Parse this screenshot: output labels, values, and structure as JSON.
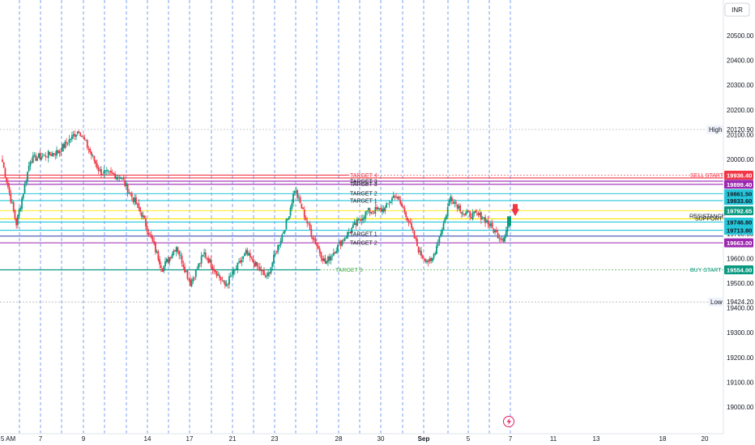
{
  "currency": "INR",
  "chart_data": {
    "type": "candlestick",
    "y_ticks": [
      19000,
      19100,
      19200,
      19300,
      19400,
      19500,
      19600,
      19700,
      19800,
      19900,
      20000,
      20100,
      20200,
      20300,
      20400,
      20500
    ],
    "y_tick_labels": [
      "19000.00",
      "19100.00",
      "19200.00",
      "19300.00",
      "19400.00",
      "19500.00",
      "19600.00",
      "19700.00",
      "19800.00",
      "19900.00",
      "20000.00",
      "20100.00",
      "20200.00",
      "20300.00",
      "20400.00",
      "20500.00"
    ],
    "ylim": [
      18930,
      20560
    ],
    "x_labels": [
      "5 AM",
      "7",
      "9",
      "14",
      "17",
      "21",
      "23",
      "28",
      "30",
      "Sep",
      "5",
      "7",
      "11",
      "13",
      "18",
      "20"
    ],
    "grid": "vertical dashed session separators",
    "high": {
      "label": "High",
      "value": 20120.9,
      "text": "20120.90"
    },
    "low": {
      "label": "Low",
      "value": 19424.2,
      "text": "19424.20"
    },
    "sell_start": {
      "label": "SELL START",
      "value": 19936.4,
      "text": "19936.40",
      "color": "#f23645"
    },
    "buy_start": {
      "label": "BUY START",
      "value": 19554.0,
      "text": "19554.00",
      "color": "#089981"
    },
    "level_labels": {
      "target_4": "TARGET 4",
      "target_3": "TARGET 3",
      "target_2": "TARGET 2",
      "target_1": "TARGET 1",
      "resistance": "RESISTANCE",
      "support": "SUPPORT"
    },
    "levels": [
      {
        "value": 19899.4,
        "text": "19899.40",
        "color": "#9c27b0"
      },
      {
        "value": 19861.5,
        "text": "19861.50",
        "color": "#26c6da"
      },
      {
        "value": 19833.6,
        "text": "19833.60",
        "color": "#26c6da"
      },
      {
        "value": 19792.65,
        "text": "19792.65",
        "color": "#089981"
      },
      {
        "value": 19746.8,
        "text": "19746.80",
        "color": "#26c6da"
      },
      {
        "value": 19713.8,
        "text": "19713.80",
        "color": "#26c6da"
      },
      {
        "value": 19663.0,
        "text": "19663.00",
        "color": "#9c27b0"
      }
    ],
    "waypoints": [
      {
        "i": 0,
        "p": 19990
      },
      {
        "i": 10,
        "p": 19740
      },
      {
        "i": 20,
        "p": 20000
      },
      {
        "i": 40,
        "p": 20030
      },
      {
        "i": 55,
        "p": 20120
      },
      {
        "i": 70,
        "p": 19950
      },
      {
        "i": 85,
        "p": 19930
      },
      {
        "i": 100,
        "p": 19780
      },
      {
        "i": 115,
        "p": 19560
      },
      {
        "i": 125,
        "p": 19650
      },
      {
        "i": 135,
        "p": 19500
      },
      {
        "i": 145,
        "p": 19620
      },
      {
        "i": 160,
        "p": 19490
      },
      {
        "i": 175,
        "p": 19620
      },
      {
        "i": 190,
        "p": 19520
      },
      {
        "i": 205,
        "p": 19760
      },
      {
        "i": 210,
        "p": 19880
      },
      {
        "i": 222,
        "p": 19700
      },
      {
        "i": 232,
        "p": 19580
      },
      {
        "i": 245,
        "p": 19680
      },
      {
        "i": 262,
        "p": 19790
      },
      {
        "i": 275,
        "p": 19800
      },
      {
        "i": 282,
        "p": 19860
      },
      {
        "i": 290,
        "p": 19780
      },
      {
        "i": 300,
        "p": 19620
      },
      {
        "i": 308,
        "p": 19580
      },
      {
        "i": 318,
        "p": 19760
      },
      {
        "i": 322,
        "p": 19850
      },
      {
        "i": 332,
        "p": 19780
      },
      {
        "i": 345,
        "p": 19770
      },
      {
        "i": 355,
        "p": 19700
      },
      {
        "i": 360,
        "p": 19680
      },
      {
        "i": 365,
        "p": 19760
      }
    ]
  }
}
